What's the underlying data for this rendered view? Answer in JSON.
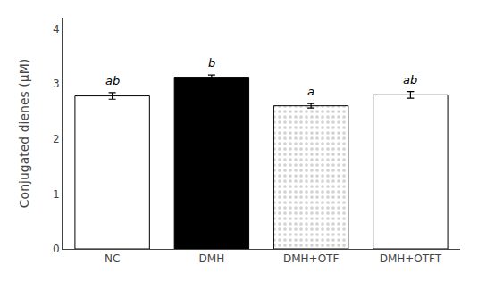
{
  "chart_data": {
    "type": "bar",
    "categories": [
      "NC",
      "DMH",
      "DMH+OTF",
      "DMH+OTFT"
    ],
    "values": [
      2.78,
      3.12,
      2.6,
      2.8
    ],
    "errors": [
      0.06,
      0.04,
      0.04,
      0.06
    ],
    "annotations": [
      "ab",
      "b",
      "a",
      "ab"
    ],
    "colors": [
      "white",
      "black",
      "lightgray",
      "white"
    ],
    "ylabel": "Conjugated dienes (μM)",
    "ylim": [
      0,
      4.2
    ],
    "yticks": [
      0,
      1,
      2,
      3,
      4
    ],
    "grid": false
  }
}
